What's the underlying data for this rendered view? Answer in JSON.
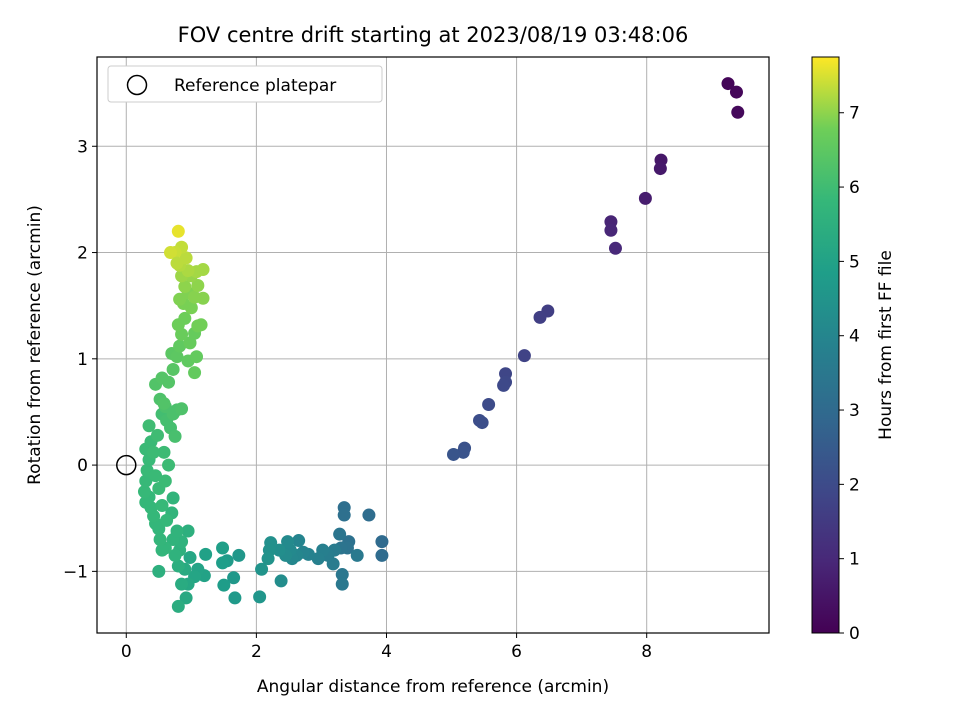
{
  "chart_data": {
    "type": "scatter",
    "title": "FOV centre drift starting at 2023/08/19 03:48:06",
    "xlabel": "Angular distance from reference (arcmin)",
    "ylabel": "Rotation from reference (arcmin)",
    "xlim": [
      -0.45,
      9.88
    ],
    "ylim": [
      -1.58,
      3.84
    ],
    "xticks": [
      0,
      2,
      4,
      6,
      8
    ],
    "yticks": [
      -1,
      0,
      1,
      2,
      3
    ],
    "grid": true,
    "colormap": "viridis",
    "colorbar": {
      "label": "Hours from first FF file",
      "range": [
        0,
        7.75
      ],
      "ticks": [
        0,
        1,
        2,
        3,
        4,
        5,
        6,
        7
      ]
    },
    "legend": {
      "position": "top-left",
      "entries": [
        "Reference platepar"
      ]
    },
    "reference_point": {
      "x": 0,
      "y": 0
    },
    "points": [
      [
        9.25,
        3.59,
        0.1
      ],
      [
        9.38,
        3.51,
        0.15
      ],
      [
        9.4,
        3.32,
        0.2
      ],
      [
        8.22,
        2.87,
        0.55
      ],
      [
        8.21,
        2.79,
        0.6
      ],
      [
        7.98,
        2.51,
        0.7
      ],
      [
        7.45,
        2.29,
        0.9
      ],
      [
        7.45,
        2.21,
        0.95
      ],
      [
        7.52,
        2.04,
        1.0
      ],
      [
        6.48,
        1.45,
        1.6
      ],
      [
        6.36,
        1.39,
        1.65
      ],
      [
        6.12,
        1.03,
        1.75
      ],
      [
        5.83,
        0.86,
        1.85
      ],
      [
        5.83,
        0.78,
        1.9
      ],
      [
        5.8,
        0.75,
        1.95
      ],
      [
        5.57,
        0.57,
        2.0
      ],
      [
        5.43,
        0.42,
        2.05
      ],
      [
        5.47,
        0.4,
        2.1
      ],
      [
        5.2,
        0.16,
        2.2
      ],
      [
        5.18,
        0.12,
        2.25
      ],
      [
        5.03,
        0.1,
        2.3
      ],
      [
        3.93,
        -0.72,
        3.0
      ],
      [
        3.93,
        -0.85,
        3.05
      ],
      [
        3.73,
        -0.47,
        3.1
      ],
      [
        3.35,
        -0.4,
        3.15
      ],
      [
        3.35,
        -0.47,
        3.2
      ],
      [
        3.42,
        -0.72,
        3.25
      ],
      [
        3.4,
        -0.78,
        3.3
      ],
      [
        3.3,
        -0.78,
        3.35
      ],
      [
        3.28,
        -0.65,
        3.4
      ],
      [
        3.32,
        -1.03,
        3.45
      ],
      [
        3.32,
        -1.12,
        3.5
      ],
      [
        3.55,
        -0.85,
        3.55
      ],
      [
        3.2,
        -0.8,
        3.6
      ],
      [
        3.18,
        -0.93,
        3.65
      ],
      [
        3.1,
        -0.85,
        3.7
      ],
      [
        3.02,
        -0.8,
        3.75
      ],
      [
        2.95,
        -0.88,
        3.8
      ],
      [
        2.8,
        -0.84,
        3.85
      ],
      [
        2.72,
        -0.82,
        3.9
      ],
      [
        2.65,
        -0.71,
        3.95
      ],
      [
        2.62,
        -0.85,
        4.0
      ],
      [
        2.55,
        -0.88,
        4.05
      ],
      [
        2.52,
        -0.8,
        4.1
      ],
      [
        2.48,
        -0.72,
        4.15
      ],
      [
        2.45,
        -0.85,
        4.2
      ],
      [
        2.38,
        -1.09,
        4.25
      ],
      [
        2.35,
        -0.8,
        4.3
      ],
      [
        2.22,
        -0.73,
        4.35
      ],
      [
        2.2,
        -0.8,
        4.4
      ],
      [
        2.18,
        -0.88,
        4.45
      ],
      [
        2.08,
        -0.98,
        4.5
      ],
      [
        2.05,
        -1.24,
        4.55
      ],
      [
        1.73,
        -0.85,
        4.6
      ],
      [
        1.65,
        -1.06,
        4.65
      ],
      [
        1.67,
        -1.25,
        4.7
      ],
      [
        1.55,
        -0.9,
        4.75
      ],
      [
        1.5,
        -1.13,
        4.8
      ],
      [
        1.48,
        -0.92,
        4.85
      ],
      [
        1.48,
        -0.78,
        4.9
      ],
      [
        1.22,
        -0.84,
        4.95
      ],
      [
        1.2,
        -1.04,
        5.0
      ],
      [
        1.1,
        -0.98,
        5.05
      ],
      [
        1.05,
        -1.05,
        5.1
      ],
      [
        0.98,
        -0.87,
        5.15
      ],
      [
        0.95,
        -1.12,
        5.2
      ],
      [
        0.92,
        -1.25,
        5.25
      ],
      [
        0.9,
        -0.98,
        5.3
      ],
      [
        0.85,
        -1.12,
        5.35
      ],
      [
        0.8,
        -1.33,
        5.4
      ],
      [
        0.8,
        -0.95,
        5.45
      ],
      [
        0.95,
        -0.62,
        5.5
      ],
      [
        0.82,
        -0.8,
        5.55
      ],
      [
        0.85,
        -0.72,
        5.6
      ],
      [
        0.75,
        -0.85,
        5.6
      ],
      [
        0.72,
        -0.7,
        5.65
      ],
      [
        0.78,
        -0.62,
        5.65
      ],
      [
        0.7,
        -0.45,
        5.7
      ],
      [
        0.72,
        -0.31,
        5.7
      ],
      [
        0.6,
        -0.78,
        5.72
      ],
      [
        0.55,
        -0.8,
        5.72
      ],
      [
        0.52,
        -0.7,
        5.75
      ],
      [
        0.5,
        -0.6,
        5.75
      ],
      [
        0.5,
        -1.0,
        5.5
      ],
      [
        0.45,
        -0.55,
        5.78
      ],
      [
        0.42,
        -0.48,
        5.8
      ],
      [
        0.38,
        -0.4,
        5.8
      ],
      [
        0.35,
        -0.3,
        5.82
      ],
      [
        0.3,
        -0.35,
        5.82
      ],
      [
        0.28,
        -0.25,
        5.85
      ],
      [
        0.3,
        -0.15,
        5.85
      ],
      [
        0.32,
        -0.05,
        5.88
      ],
      [
        0.35,
        0.05,
        5.88
      ],
      [
        0.3,
        0.15,
        5.9
      ],
      [
        0.38,
        0.22,
        5.9
      ],
      [
        0.45,
        -0.1,
        5.9
      ],
      [
        0.5,
        -0.22,
        5.9
      ],
      [
        0.55,
        -0.38,
        5.85
      ],
      [
        0.62,
        -0.52,
        5.8
      ],
      [
        0.6,
        -0.15,
        5.92
      ],
      [
        0.65,
        0.0,
        5.95
      ],
      [
        0.58,
        0.12,
        5.95
      ],
      [
        0.42,
        0.12,
        5.95
      ],
      [
        0.35,
        0.37,
        6.0
      ],
      [
        0.48,
        0.28,
        6.0
      ],
      [
        0.55,
        0.48,
        6.05
      ],
      [
        0.62,
        0.42,
        6.1
      ],
      [
        0.68,
        0.35,
        6.1
      ],
      [
        0.75,
        0.27,
        6.15
      ],
      [
        0.78,
        0.52,
        6.2
      ],
      [
        0.72,
        0.48,
        6.2
      ],
      [
        0.85,
        0.53,
        6.25
      ],
      [
        0.6,
        0.55,
        6.2
      ],
      [
        0.52,
        0.62,
        6.25
      ],
      [
        0.58,
        0.58,
        6.3
      ],
      [
        0.45,
        0.76,
        6.3
      ],
      [
        0.55,
        0.82,
        6.35
      ],
      [
        0.65,
        0.78,
        6.35
      ],
      [
        0.72,
        0.9,
        6.4
      ],
      [
        0.7,
        1.05,
        6.45
      ],
      [
        0.78,
        1.02,
        6.5
      ],
      [
        0.82,
        1.12,
        6.55
      ],
      [
        0.95,
        0.98,
        6.55
      ],
      [
        1.05,
        0.87,
        6.6
      ],
      [
        1.08,
        1.02,
        6.6
      ],
      [
        0.98,
        1.15,
        6.65
      ],
      [
        1.05,
        1.24,
        6.65
      ],
      [
        0.85,
        1.23,
        6.7
      ],
      [
        0.8,
        1.32,
        6.75
      ],
      [
        0.9,
        1.38,
        6.75
      ],
      [
        1.1,
        1.31,
        6.8
      ],
      [
        1.15,
        1.32,
        6.8
      ],
      [
        1.0,
        1.48,
        6.85
      ],
      [
        0.88,
        1.52,
        6.85
      ],
      [
        0.82,
        1.56,
        6.9
      ],
      [
        0.95,
        1.62,
        6.9
      ],
      [
        1.18,
        1.57,
        6.95
      ],
      [
        1.05,
        1.58,
        6.95
      ],
      [
        0.9,
        1.68,
        7.0
      ],
      [
        1.1,
        1.69,
        7.0
      ],
      [
        1.0,
        1.78,
        7.05
      ],
      [
        0.85,
        1.78,
        7.1
      ],
      [
        1.08,
        1.82,
        7.15
      ],
      [
        1.18,
        1.84,
        7.15
      ],
      [
        0.95,
        1.83,
        7.2
      ],
      [
        0.82,
        1.88,
        7.25
      ],
      [
        0.92,
        1.95,
        7.3
      ],
      [
        0.85,
        2.05,
        7.35
      ],
      [
        0.75,
        2.0,
        7.4
      ],
      [
        0.68,
        2.0,
        7.45
      ],
      [
        0.8,
        2.2,
        7.6
      ],
      [
        0.78,
        1.9,
        7.3
      ]
    ]
  }
}
